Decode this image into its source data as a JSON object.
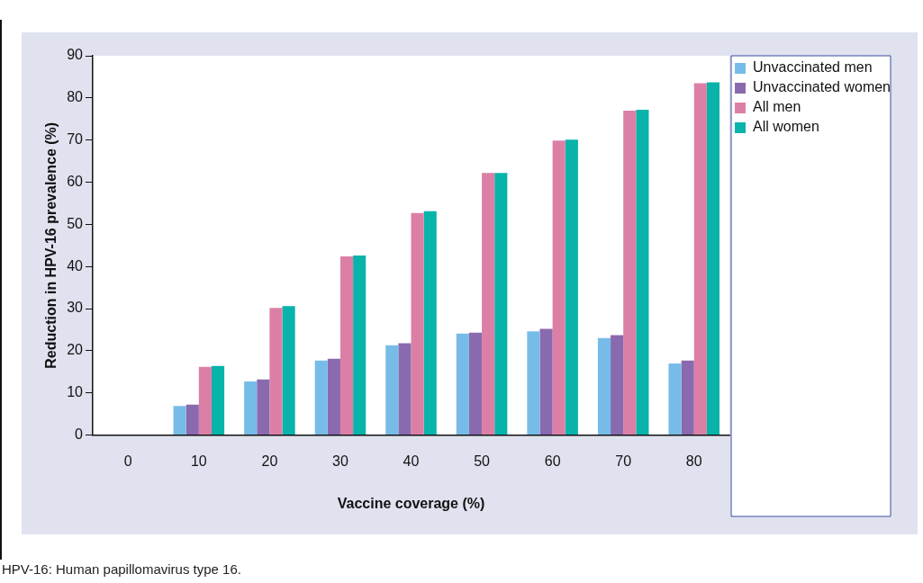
{
  "chart_data": {
    "type": "bar",
    "xlabel": "Vaccine coverage (%)",
    "ylabel": "Reduction in HPV-16 prevalence (%)",
    "categories": [
      "0",
      "10",
      "20",
      "30",
      "40",
      "50",
      "60",
      "70",
      "80"
    ],
    "series": [
      {
        "name": "Unvaccinated men",
        "color": "#77bce8",
        "values": [
          0,
          6.9,
          12.7,
          17.7,
          21.3,
          24.1,
          24.6,
          23.0,
          17.0
        ]
      },
      {
        "name": "Unvaccinated women",
        "color": "#8a6aaf",
        "values": [
          0,
          7.2,
          13.2,
          18.1,
          21.8,
          24.3,
          25.2,
          23.7,
          17.7
        ]
      },
      {
        "name": "All men",
        "color": "#dc7fa6",
        "values": [
          0,
          16.2,
          30.2,
          42.4,
          52.7,
          62.2,
          69.9,
          77.0,
          83.5
        ]
      },
      {
        "name": "All women",
        "color": "#08b3aa",
        "values": [
          0,
          16.4,
          30.6,
          42.6,
          53.1,
          62.2,
          70.1,
          77.2,
          83.7
        ]
      }
    ],
    "ylim": [
      0,
      90
    ],
    "yticks": [
      0,
      10,
      20,
      30,
      40,
      50,
      60,
      70,
      80,
      90
    ],
    "grid": false,
    "legend": "top right",
    "annotations": [
      "HPV-16: Human papillomavirus type 16."
    ]
  }
}
